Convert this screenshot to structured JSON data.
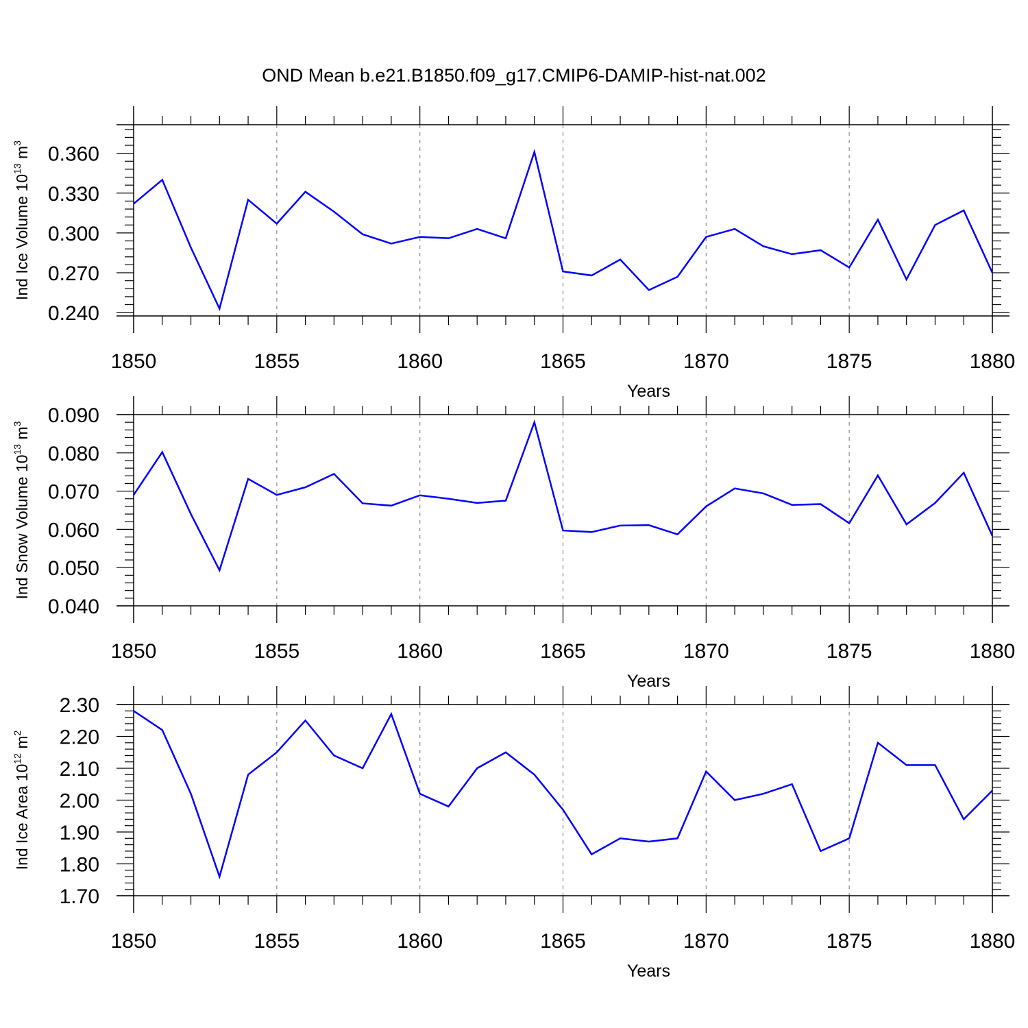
{
  "page": {
    "title": "OND Mean b.e21.B1850.f09_g17.CMIP6-DAMIP-hist-nat.002"
  },
  "colors": {
    "series": "#0000ff",
    "axes": "#000000",
    "grid": "#888888",
    "background": "#ffffff"
  },
  "chart_data": [
    {
      "type": "line",
      "title": "OND Mean b.e21.B1850.f09_g17.CMIP6-DAMIP-hist-nat.002",
      "xlabel": "Years",
      "ylabel": {
        "main": "Ind Ice Volume 10",
        "exp": "13",
        "unit": " m",
        "unit_exp": "3"
      },
      "xlim": [
        1850,
        1880
      ],
      "ylim": [
        0.2375,
        0.3815
      ],
      "yticks": [
        "0.240",
        "0.270",
        "0.300",
        "0.330",
        "0.360"
      ],
      "xticks": [
        "1850",
        "1855",
        "1860",
        "1865",
        "1870",
        "1875",
        "1880"
      ],
      "grid": "vertical dashed at major x ticks",
      "x": [
        1850,
        1851,
        1852,
        1853,
        1854,
        1855,
        1856,
        1857,
        1858,
        1859,
        1860,
        1861,
        1862,
        1863,
        1864,
        1865,
        1866,
        1867,
        1868,
        1869,
        1870,
        1871,
        1872,
        1873,
        1874,
        1875,
        1876,
        1877,
        1878,
        1879,
        1880
      ],
      "series": [
        {
          "values": [
            0.322,
            0.34,
            0.289,
            0.243,
            0.325,
            0.307,
            0.331,
            0.316,
            0.299,
            0.292,
            0.297,
            0.296,
            0.303,
            0.296,
            0.361,
            0.271,
            0.268,
            0.28,
            0.257,
            0.267,
            0.297,
            0.303,
            0.29,
            0.284,
            0.287,
            0.274,
            0.31,
            0.265,
            0.306,
            0.317,
            0.27
          ]
        }
      ]
    },
    {
      "type": "line",
      "xlabel": "Years",
      "ylabel": {
        "main": "Ind Snow Volume 10",
        "exp": "13",
        "unit": " m",
        "unit_exp": "3"
      },
      "xlim": [
        1850,
        1880
      ],
      "ylim": [
        0.04,
        0.09
      ],
      "yticks": [
        "0.040",
        "0.050",
        "0.060",
        "0.070",
        "0.080",
        "0.090"
      ],
      "xticks": [
        "1850",
        "1855",
        "1860",
        "1865",
        "1870",
        "1875",
        "1880"
      ],
      "grid": "vertical dashed at major x ticks",
      "x": [
        1850,
        1851,
        1852,
        1853,
        1854,
        1855,
        1856,
        1857,
        1858,
        1859,
        1860,
        1861,
        1862,
        1863,
        1864,
        1865,
        1866,
        1867,
        1868,
        1869,
        1870,
        1871,
        1872,
        1873,
        1874,
        1875,
        1876,
        1877,
        1878,
        1879,
        1880
      ],
      "series": [
        {
          "values": [
            0.069,
            0.0802,
            0.064,
            0.0493,
            0.0732,
            0.069,
            0.071,
            0.0745,
            0.0668,
            0.0662,
            0.0689,
            0.068,
            0.0669,
            0.0675,
            0.088,
            0.0597,
            0.0593,
            0.061,
            0.0611,
            0.0587,
            0.066,
            0.0707,
            0.0694,
            0.0664,
            0.0666,
            0.0616,
            0.0741,
            0.0613,
            0.0669,
            0.0748,
            0.0583
          ]
        }
      ]
    },
    {
      "type": "line",
      "xlabel": "Years",
      "ylabel": {
        "main": "Ind Ice Area 10",
        "exp": "12",
        "unit": " m",
        "unit_exp": "2"
      },
      "xlim": [
        1850,
        1880
      ],
      "ylim": [
        1.7,
        2.3
      ],
      "yticks": [
        "1.70",
        "1.80",
        "1.90",
        "2.00",
        "2.10",
        "2.20",
        "2.30"
      ],
      "xticks": [
        "1850",
        "1855",
        "1860",
        "1865",
        "1870",
        "1875",
        "1880"
      ],
      "grid": "vertical dashed at major x ticks",
      "x": [
        1850,
        1851,
        1852,
        1853,
        1854,
        1855,
        1856,
        1857,
        1858,
        1859,
        1860,
        1861,
        1862,
        1863,
        1864,
        1865,
        1866,
        1867,
        1868,
        1869,
        1870,
        1871,
        1872,
        1873,
        1874,
        1875,
        1876,
        1877,
        1878,
        1879,
        1880
      ],
      "series": [
        {
          "values": [
            2.28,
            2.22,
            2.02,
            1.76,
            2.08,
            2.15,
            2.25,
            2.14,
            2.1,
            2.27,
            2.02,
            1.98,
            2.1,
            2.15,
            2.08,
            1.97,
            1.83,
            1.88,
            1.87,
            1.88,
            2.09,
            2.0,
            2.02,
            2.05,
            1.84,
            1.88,
            2.18,
            2.11,
            2.11,
            1.94,
            2.03
          ]
        }
      ]
    }
  ]
}
